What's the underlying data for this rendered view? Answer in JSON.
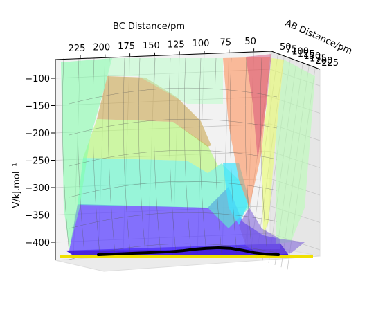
{
  "chart_data": {
    "type": "surface3d",
    "title": "",
    "xlabel": "BC Distance/pm",
    "ylabel": "AB Distance/pm",
    "zlabel": "V/kJ.mol⁻¹",
    "x_ticks": [
      "225",
      "200",
      "175",
      "150",
      "125",
      "100",
      "75",
      "50"
    ],
    "y_ticks": [
      "50",
      "75",
      "100",
      "125",
      "150",
      "175",
      "200",
      "225"
    ],
    "z_ticks": [
      "−100",
      "−150",
      "−200",
      "−250",
      "−300",
      "−350",
      "−400"
    ],
    "z_range": [
      -430,
      -80
    ],
    "colormap": "jet",
    "grid": true,
    "trajectory": {
      "color": "#000000",
      "note": "",
      "description": "reaction path",
      "points_z": [
        -432,
        -431,
        -430,
        -429,
        -428,
        -427,
        -426,
        -424,
        -421,
        -419,
        -418,
        -419,
        -423,
        -428,
        -431,
        -432
      ]
    },
    "projection_color": "#ffee00"
  }
}
